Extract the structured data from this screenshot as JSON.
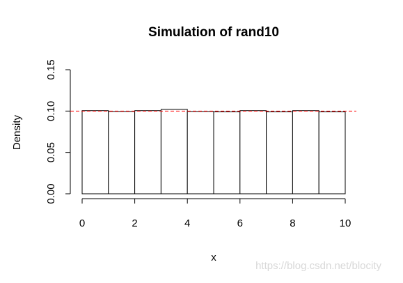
{
  "chart_data": {
    "type": "histogram",
    "title": "Simulation of rand10",
    "x_label": "x",
    "y_label": "Density",
    "bins": [
      0,
      1,
      2,
      3,
      4,
      5,
      6,
      7,
      8,
      9,
      10
    ],
    "values": [
      0.1005,
      0.0995,
      0.1005,
      0.102,
      0.0995,
      0.099,
      0.1005,
      0.099,
      0.1005,
      0.099
    ],
    "color": "#ffffff",
    "edge_color": "#000000",
    "hline": 0.1,
    "hline_color": "#ff0000",
    "xlim": [
      0,
      10
    ],
    "xticks": [
      0,
      2,
      4,
      6,
      8,
      10
    ],
    "ylim": [
      0,
      0.15
    ],
    "yticks": [
      {
        "value": 0,
        "label": "0.00"
      },
      0.05,
      {
        "value": 0.1,
        "label": "0.10"
      },
      0.15
    ],
    "watermark": "https://blog.csdn.net/blocity"
  }
}
